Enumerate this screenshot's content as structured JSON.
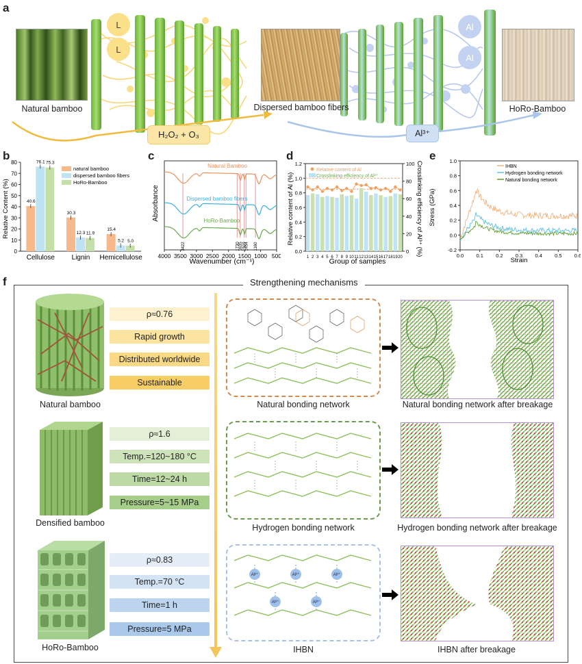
{
  "panel_a": {
    "label": "a",
    "caption_natural": "Natural bamboo",
    "caption_dispersed": "Dispersed bamboo fibers",
    "caption_horo": "HoRo-Bamboo",
    "lignin_marker": "L",
    "al_marker": "Al",
    "process_step1": "H₂O₂ + O₃",
    "process_step2": "Al³⁺"
  },
  "panel_b": {
    "label": "b",
    "chart_data": {
      "type": "bar",
      "categories": [
        "Cellulose",
        "Lignin",
        "Hemicellulose"
      ],
      "series": [
        {
          "name": "natural bamboo",
          "values": [
            40.6,
            30.3,
            15.4
          ],
          "color": "#f5b98b"
        },
        {
          "name": "dispersed bamboo fibers",
          "values": [
            76.1,
            12.3,
            5.2
          ],
          "color": "#bfe3f2"
        },
        {
          "name": "HoRo-Bamboo",
          "values": [
            75.3,
            11.9,
            5.0
          ],
          "color": "#c5dfa8"
        }
      ],
      "value_labels": [
        [
          "40.6",
          "30.3",
          "15.4"
        ],
        [
          "76.1",
          "12.3",
          "5.2"
        ],
        [
          "75.3",
          "11.9",
          "5.0"
        ]
      ],
      "ylabel": "Relative Content (%)",
      "ylim": [
        0,
        80
      ],
      "yticks": [
        0,
        10,
        20,
        30,
        40,
        50,
        60,
        70,
        80
      ],
      "legend": "top-right"
    }
  },
  "panel_c": {
    "label": "c",
    "chart_data": {
      "type": "line",
      "xlabel": "Wavenumber (cm⁻¹)",
      "ylabel": "Absorbance",
      "xlim": [
        4000,
        500
      ],
      "xticks": [
        4000,
        3500,
        3000,
        2500,
        2000,
        1500,
        1000,
        500
      ],
      "series": [
        {
          "name": "Natural Bamboo",
          "color": "#e8925a"
        },
        {
          "name": "Dispersed bamboo fibers",
          "color": "#3ab0e0"
        },
        {
          "name": "HoRo-Bamboo",
          "color": "#6aa84f"
        }
      ],
      "marked_peaks": [
        3422,
        1730,
        1635,
        1509,
        1454,
        1160
      ],
      "peak_labels": [
        "3422",
        "1730",
        "1635",
        "1509",
        "1454",
        "1160"
      ]
    }
  },
  "panel_d": {
    "label": "d",
    "chart_data": {
      "type": "bar",
      "xlabel": "Group of samples",
      "ylabel_left": "Relative content of Al (%)",
      "ylabel_right": "Crosslinking efficiency of Al³⁺ (%)",
      "ylim_left": [
        0,
        1.2
      ],
      "yticks_left": [
        "0.0",
        "0.2",
        "0.4",
        "0.6",
        "0.8",
        "1.0",
        "1.2"
      ],
      "ylim_right": [
        0,
        100
      ],
      "yticks_right": [
        "0",
        "20",
        "40",
        "60",
        "80",
        "100"
      ],
      "categories": [
        "1",
        "2",
        "3",
        "4",
        "5",
        "6",
        "7",
        "8",
        "9",
        "10",
        "11",
        "12",
        "13",
        "14",
        "15",
        "16",
        "17",
        "18",
        "19",
        "20"
      ],
      "series": [
        {
          "name": "Relative content of Al",
          "type": "line",
          "color": "#f0a060",
          "values": [
            0.88,
            0.84,
            0.88,
            0.82,
            0.86,
            0.84,
            0.88,
            0.83,
            0.86,
            0.82,
            0.92,
            0.9,
            0.91,
            0.86,
            0.87,
            0.84,
            0.86,
            0.82,
            0.88,
            0.84
          ]
        },
        {
          "name": "Crosslinking efficiency of Al³⁺",
          "type": "bar",
          "color_a": "#bde3f5",
          "color_b": "#c9e1b0",
          "values": [
            64,
            66,
            65,
            62,
            63,
            62,
            61,
            65,
            63,
            64,
            60,
            72,
            68,
            64,
            66,
            64,
            62,
            63,
            66,
            65
          ]
        }
      ],
      "reference_lines_left": [
        1.0,
        0.85
      ],
      "legend": "top-left"
    }
  },
  "panel_e": {
    "label": "e",
    "chart_data": {
      "type": "line",
      "xlabel": "Strain",
      "ylabel": "Stress (GPa)",
      "xlim": [
        0,
        0.6
      ],
      "xticks": [
        "0.0",
        "0.1",
        "0.2",
        "0.3",
        "0.4",
        "0.5",
        "0.6"
      ],
      "ylim": [
        -0.2,
        1.0
      ],
      "yticks": [
        "-0.2",
        "0.0",
        "0.2",
        "0.4",
        "0.6",
        "0.8",
        "1.0"
      ],
      "series": [
        {
          "name": "IHBN",
          "color": "#f2b27a"
        },
        {
          "name": "Hydrogen bonding network",
          "color": "#5bc0e8"
        },
        {
          "name": "Natural bonding network",
          "color": "#5c9e2e"
        }
      ],
      "legend": "top-right"
    }
  },
  "panel_f": {
    "label": "f",
    "title": "Strengthening mechanisms",
    "rows": [
      {
        "material": "Natural bamboo",
        "props": [
          "ρ≈0.76",
          "Rapid growth",
          "Distributed worldwide",
          "Sustainable"
        ],
        "network": "Natural bonding network",
        "breakage": "Natural bonding network after breakage"
      },
      {
        "material": "Densified bamboo",
        "props": [
          "ρ≈1.6",
          "Temp.=120~180 °C",
          "Time=12~24 h",
          "Pressure=5~15 MPa"
        ],
        "network": "Hydrogen bonding network",
        "breakage": "Hydrogen bonding network after breakage"
      },
      {
        "material": "HoRo-Bamboo",
        "props": [
          "ρ≈0.83",
          "Temp.=70 °C",
          "Time=1 h",
          "Pressure=5 MPa"
        ],
        "network": "IHBN",
        "breakage": "IHBN after breakage"
      }
    ],
    "al_ion": "Al³⁺"
  }
}
